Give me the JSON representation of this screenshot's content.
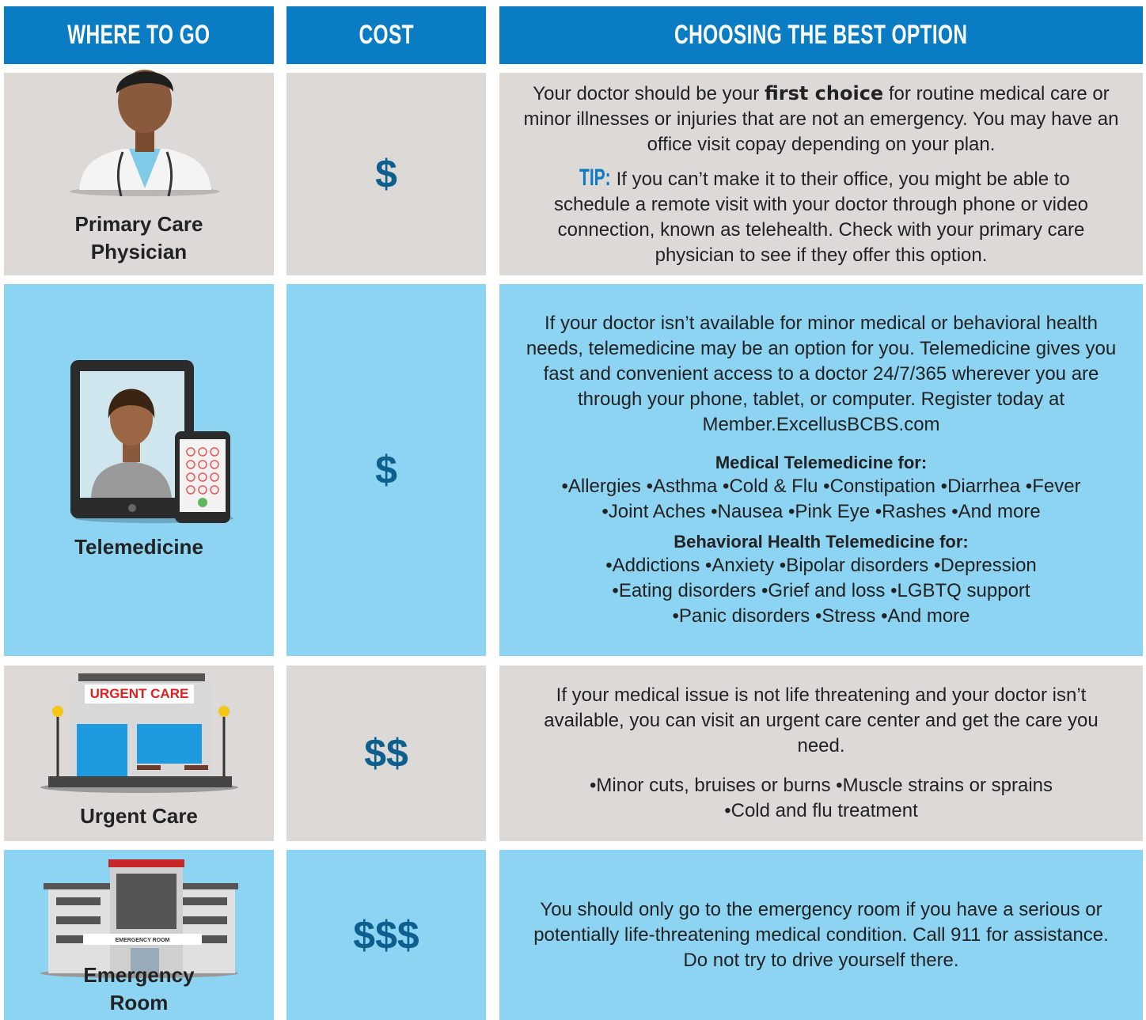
{
  "header": {
    "columns": [
      "WHERE TO GO",
      "COST",
      "CHOOSING THE BEST OPTION"
    ]
  },
  "rows": [
    {
      "name": "Primary Care Physician",
      "cost": "$",
      "paragraphs": [
        [
          "Your doctor should be your ",
          {
            "bold": "first choice"
          },
          " for routine medical care or minor illnesses or injuries that are not an emergency. You may have an office visit copay depending on your plan."
        ]
      ],
      "tip": {
        "label": "TIP:",
        "text": "If you can’t make it to their office, you might be able to schedule a remote visit with your doctor through phone or video connection, known as telehealth. Check with your primary care physician to see if they offer this option."
      }
    },
    {
      "name": "Telemedicine",
      "cost": "$",
      "paragraphs": [
        [
          "If your doctor isn’t available for minor medical or behavioral health needs, telemedicine may be an option for you. Telemedicine gives you fast and convenient access to a doctor 24/7/365 wherever you are through your phone, tablet, or computer. Register today at Member.ExcellusBCBS.com"
        ]
      ],
      "lists": [
        {
          "heading": "Medical Telemedicine for:",
          "items": [
            "Allergies",
            "Asthma",
            "Cold & Flu",
            "Constipation",
            "Diarrhea",
            "Fever",
            "Joint Aches",
            "Nausea",
            "Pink Eye",
            "Rashes",
            "And more"
          ]
        },
        {
          "heading": "Behavioral Health Telemedicine for:",
          "items": [
            "Addictions",
            "Anxiety",
            "Bipolar disorders",
            "Depression",
            "Eating disorders",
            "Grief and loss",
            "LGBTQ support",
            "Panic disorders",
            "Stress",
            "And more"
          ]
        }
      ]
    },
    {
      "name": "Urgent Care",
      "cost": "$$",
      "icon_label": "URGENT CARE",
      "paragraphs": [
        [
          "If your medical issue is not life threatening and your doctor isn’t available, you can visit an urgent care center and get the care you need."
        ]
      ],
      "lists": [
        {
          "items": [
            "Minor cuts, bruises or burns",
            "Muscle strains or sprains",
            "Cold and flu treatment"
          ]
        }
      ]
    },
    {
      "name": "Emergency Room",
      "cost": "$$$",
      "icon_label": "EMERGENCY ROOM",
      "paragraphs": [
        [
          "You should only go to the emergency room if you have a serious or potentially life-threatening medical condition. Call 911 for assistance. Do not try to drive yourself there."
        ]
      ]
    }
  ]
}
